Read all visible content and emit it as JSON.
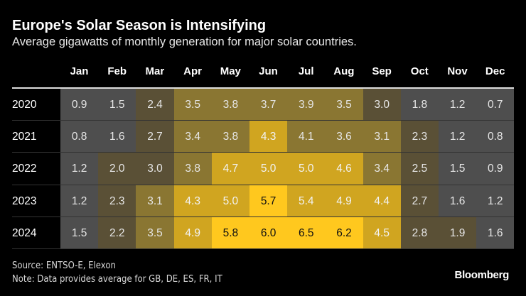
{
  "chart_data": {
    "type": "heatmap",
    "title": "Europe's Solar Season is Intensifying",
    "subtitle": "Average gigawatts of monthly generation for major solar countries.",
    "columns": [
      "Jan",
      "Feb",
      "Mar",
      "Apr",
      "May",
      "Jun",
      "Jul",
      "Aug",
      "Sep",
      "Oct",
      "Nov",
      "Dec"
    ],
    "rows": [
      {
        "label": "2020",
        "values": [
          0.9,
          1.5,
          2.4,
          3.5,
          3.8,
          3.7,
          3.9,
          3.5,
          3.0,
          1.8,
          1.2,
          0.7
        ]
      },
      {
        "label": "2021",
        "values": [
          0.8,
          1.6,
          2.7,
          3.4,
          3.8,
          4.3,
          4.1,
          3.6,
          3.1,
          2.3,
          1.2,
          0.8
        ]
      },
      {
        "label": "2022",
        "values": [
          1.2,
          2.0,
          3.0,
          3.8,
          4.7,
          5.0,
          5.0,
          4.6,
          3.4,
          2.5,
          1.5,
          0.9
        ]
      },
      {
        "label": "2023",
        "values": [
          1.2,
          2.3,
          3.1,
          4.3,
          5.0,
          5.7,
          5.4,
          4.9,
          4.4,
          2.7,
          1.6,
          1.2
        ]
      },
      {
        "label": "2024",
        "values": [
          1.5,
          2.2,
          3.5,
          4.9,
          5.8,
          6.0,
          6.5,
          6.2,
          4.5,
          2.8,
          1.9,
          1.6
        ]
      }
    ],
    "color_scale": [
      {
        "min": 0,
        "color": "#4e4e4e",
        "text": "#e6e6e6"
      },
      {
        "min": 1.85,
        "color": "#5a5036",
        "text": "#e6e6e6"
      },
      {
        "min": 3.05,
        "color": "#8a7632",
        "text": "#e6e6e6"
      },
      {
        "min": 4.2,
        "color": "#d0a520",
        "text": "#f2f2f2"
      },
      {
        "min": 5.5,
        "color": "#ffc81e",
        "text": "#111111"
      }
    ]
  },
  "footer": {
    "source": "Source: ENTSO-E, Elexon",
    "note": "Note: Data provides average for GB, DE, ES, FR, IT",
    "logo": "Bloomberg"
  }
}
